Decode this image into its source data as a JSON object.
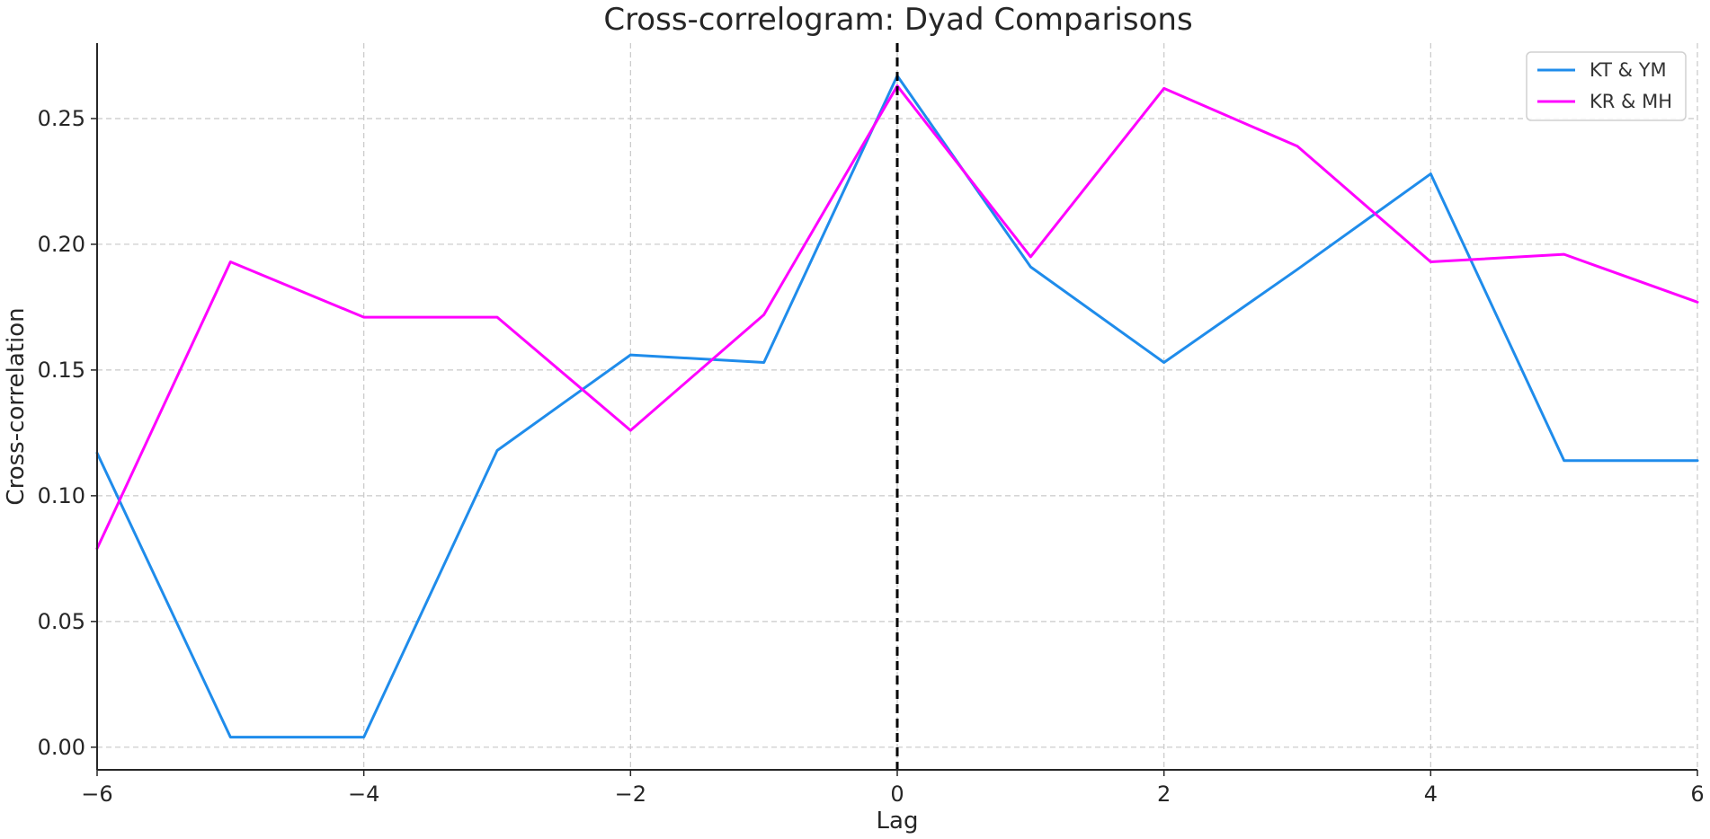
{
  "chart_data": {
    "type": "line",
    "title": "Cross-correlogram: Dyad Comparisons",
    "xlabel": "Lag",
    "ylabel": "Cross-correlation",
    "xlim": [
      -6,
      6
    ],
    "ylim": [
      -0.009,
      0.28
    ],
    "xticks": [
      -6,
      -4,
      -2,
      0,
      2,
      4,
      6
    ],
    "yticks": [
      0.0,
      0.05,
      0.1,
      0.15,
      0.2,
      0.25
    ],
    "xtick_labels": [
      "−6",
      "−4",
      "−2",
      "0",
      "2",
      "4",
      "6"
    ],
    "ytick_labels": [
      "0.00",
      "0.05",
      "0.10",
      "0.15",
      "0.20",
      "0.25"
    ],
    "grid": true,
    "legend_position": "top-right",
    "reference_line": {
      "axis": "x",
      "value": 0,
      "style": "dashed",
      "color": "#000000"
    },
    "x": [
      -6,
      -5,
      -4,
      -3,
      -2,
      -1,
      0,
      1,
      2,
      3,
      4,
      5,
      6
    ],
    "series": [
      {
        "name": "KT & YM",
        "color": "#1f8ceb",
        "values": [
          0.117,
          0.004,
          0.004,
          0.118,
          0.156,
          0.153,
          0.267,
          0.191,
          0.153,
          0.19,
          0.228,
          0.114,
          0.114
        ]
      },
      {
        "name": "KR & MH",
        "color": "#ff00ff",
        "values": [
          0.079,
          0.193,
          0.171,
          0.171,
          0.126,
          0.172,
          0.263,
          0.195,
          0.262,
          0.239,
          0.193,
          0.196,
          0.177
        ]
      }
    ]
  }
}
